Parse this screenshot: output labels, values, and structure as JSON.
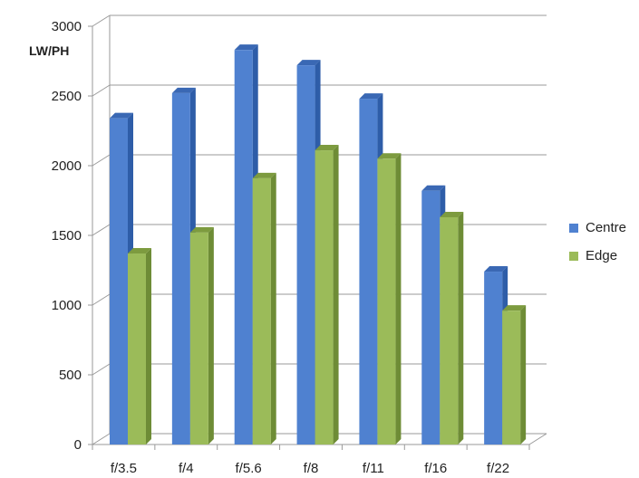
{
  "chart_data": {
    "type": "bar",
    "title": "",
    "xlabel": "",
    "ylabel": "LW/PH",
    "categories": [
      "f/3.5",
      "f/4",
      "f/5.6",
      "f/8",
      "f/11",
      "f/16",
      "f/22"
    ],
    "series": [
      {
        "name": "Centre",
        "values": [
          2340,
          2520,
          2830,
          2720,
          2480,
          1820,
          1240
        ],
        "color": "#4f81d0",
        "side_color": "#2e5da8",
        "top_color": "#3a68b4"
      },
      {
        "name": "Edge",
        "values": [
          1370,
          1520,
          1910,
          2110,
          2050,
          1630,
          960
        ],
        "color": "#9bbb59",
        "side_color": "#6e8c36",
        "top_color": "#7d9b3f"
      }
    ],
    "ylim": [
      0,
      3000
    ],
    "yticks": [
      0,
      500,
      1000,
      1500,
      2000,
      2500,
      3000
    ],
    "grid": true,
    "legend_position": "right"
  }
}
